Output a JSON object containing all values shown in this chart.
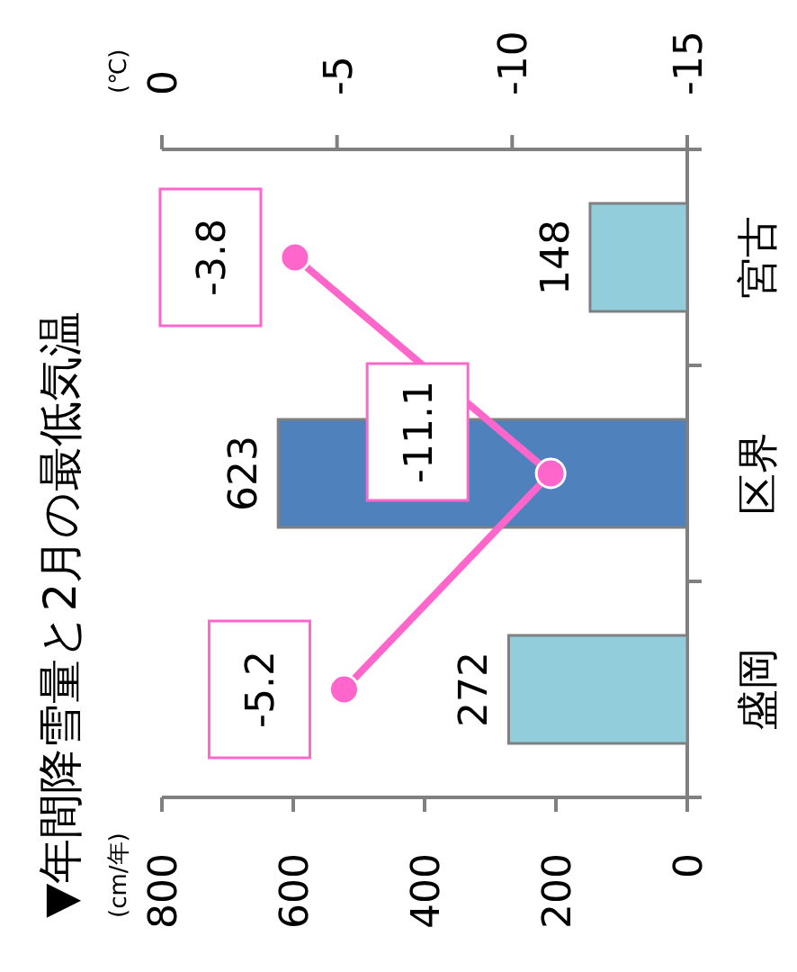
{
  "chart_data": {
    "type": "bar",
    "orientation": "horizontal",
    "title": "▼年間降雪量と2月の最低気温",
    "annotations": [
      "(cm/年)"
    ],
    "x2label": "(℃)",
    "categories": [
      "宮古",
      "区界",
      "盛岡"
    ],
    "series": [
      {
        "colors": [
          "#92cddc",
          "#4f81bd",
          "#92cddc"
        ],
        "values": [
          148,
          623,
          272
        ]
      },
      {
        "type": "line",
        "axis": "x2",
        "color": "#ff66cc",
        "values": [
          -3.8,
          -11.1,
          -5.2
        ]
      }
    ],
    "marker": "circle",
    "xlim": [
      800,
      0
    ],
    "xticks": [
      800,
      600,
      400,
      200,
      0
    ],
    "x2lim": [
      0,
      -15
    ],
    "x2ticks": [
      0,
      -5,
      -10,
      -15
    ],
    "data_labels": true
  }
}
